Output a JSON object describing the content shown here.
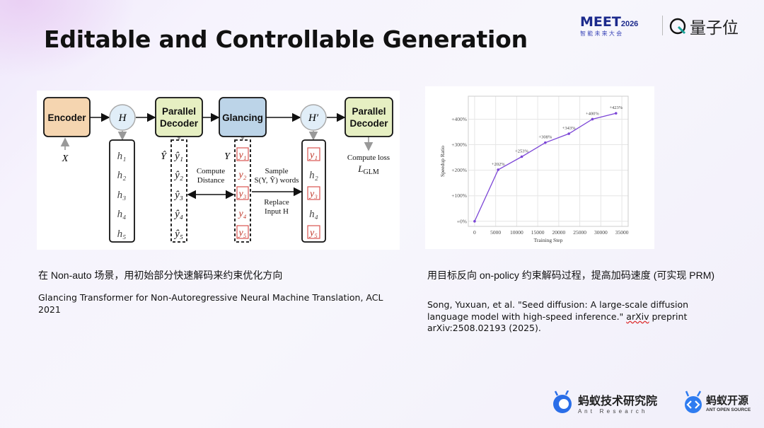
{
  "slide": {
    "title": "Editable and Controllable Generation",
    "left_caption": "在 Non-auto 场景，用初始部分快速解码来约束优化方向",
    "left_reference": "Glancing Transformer for Non-Autoregressive Neural Machine Translation, ACL 2021",
    "right_caption": "用目标反向 on-policy 约束解码过程，提高加码速度 (可实现 PRM)",
    "right_reference_1": "Song, Yuxuan, et al. \"Seed diffusion: A large-scale diffusion language model with high-speed inference.\" ",
    "right_reference_arxiv": "arXiv",
    "right_reference_2": " preprint arXiv:2508.02193 (2025)."
  },
  "header_logos": {
    "meet": "MEET",
    "meet_year": "2026",
    "meet_sub": "智 能 未 来 大 会",
    "qbit": "量子位"
  },
  "footer_logos": {
    "ant_research_cn": "蚂蚁技术研究院",
    "ant_research_en": "A n t   R e s e a r c h",
    "ant_open_cn": "蚂蚁开源",
    "ant_open_en": "ANT OPEN SOURCE"
  },
  "diagram": {
    "encoder": "Encoder",
    "h_node": "H",
    "parallel_decoder_1": [
      "Parallel",
      "Decoder"
    ],
    "glancing": "Glancing",
    "h_prime_node": "H′",
    "parallel_decoder_2": [
      "Parallel",
      "Decoder"
    ],
    "x_input": "X",
    "h_column": [
      "h₁",
      "h₂",
      "h₃",
      "h₄",
      "h₅"
    ],
    "y_hat_label": "Ŷ",
    "y_hat_column": [
      "ŷ₁",
      "ŷ₂",
      "ŷ₃",
      "ŷ₄",
      "ŷ₅"
    ],
    "y_label": "Y",
    "y_column": [
      "y₁",
      "y₂",
      "y₃",
      "y₄",
      "y₅"
    ],
    "h_prime_column": [
      "y₁",
      "h₂",
      "y₃",
      "h₄",
      "y₅"
    ],
    "compute_distance": [
      "Compute",
      "Distance"
    ],
    "sample": [
      "Sample",
      "S(Y, Ŷ) words"
    ],
    "replace": [
      "Replace",
      "Input H"
    ],
    "compute_loss": [
      "Compute loss",
      "L",
      "GLM"
    ],
    "colors": {
      "encoder": "#f5d5b0",
      "decoder": "#e6efc2",
      "glancing": "#bcd4e8",
      "node": "#e1eef8",
      "highlight": "#d9534f"
    }
  },
  "chart_data": {
    "type": "line",
    "xlabel": "Training Step",
    "ylabel": "Speedup Ratio",
    "x": [
      0,
      5600,
      11200,
      16800,
      22400,
      28000,
      33600
    ],
    "values": [
      0,
      202,
      253,
      308,
      343,
      400,
      423
    ],
    "data_labels": [
      "",
      "+202%",
      "+253%",
      "+308%",
      "+343%",
      "+400%",
      "+423%"
    ],
    "xticks": [
      0,
      5000,
      10000,
      15000,
      20000,
      25000,
      30000,
      35000
    ],
    "xtick_labels": [
      "0",
      "5000",
      "10000",
      "15000",
      "20000",
      "25000",
      "30000",
      "35000"
    ],
    "yticks": [
      0,
      100,
      200,
      300,
      400
    ],
    "ytick_labels": [
      "+0%",
      "+100%",
      "+200%",
      "+300%",
      "+400%"
    ],
    "xlim": [
      -1500,
      36500
    ],
    "ylim": [
      -20,
      490
    ],
    "grid": true,
    "color": "#7b45d6"
  }
}
